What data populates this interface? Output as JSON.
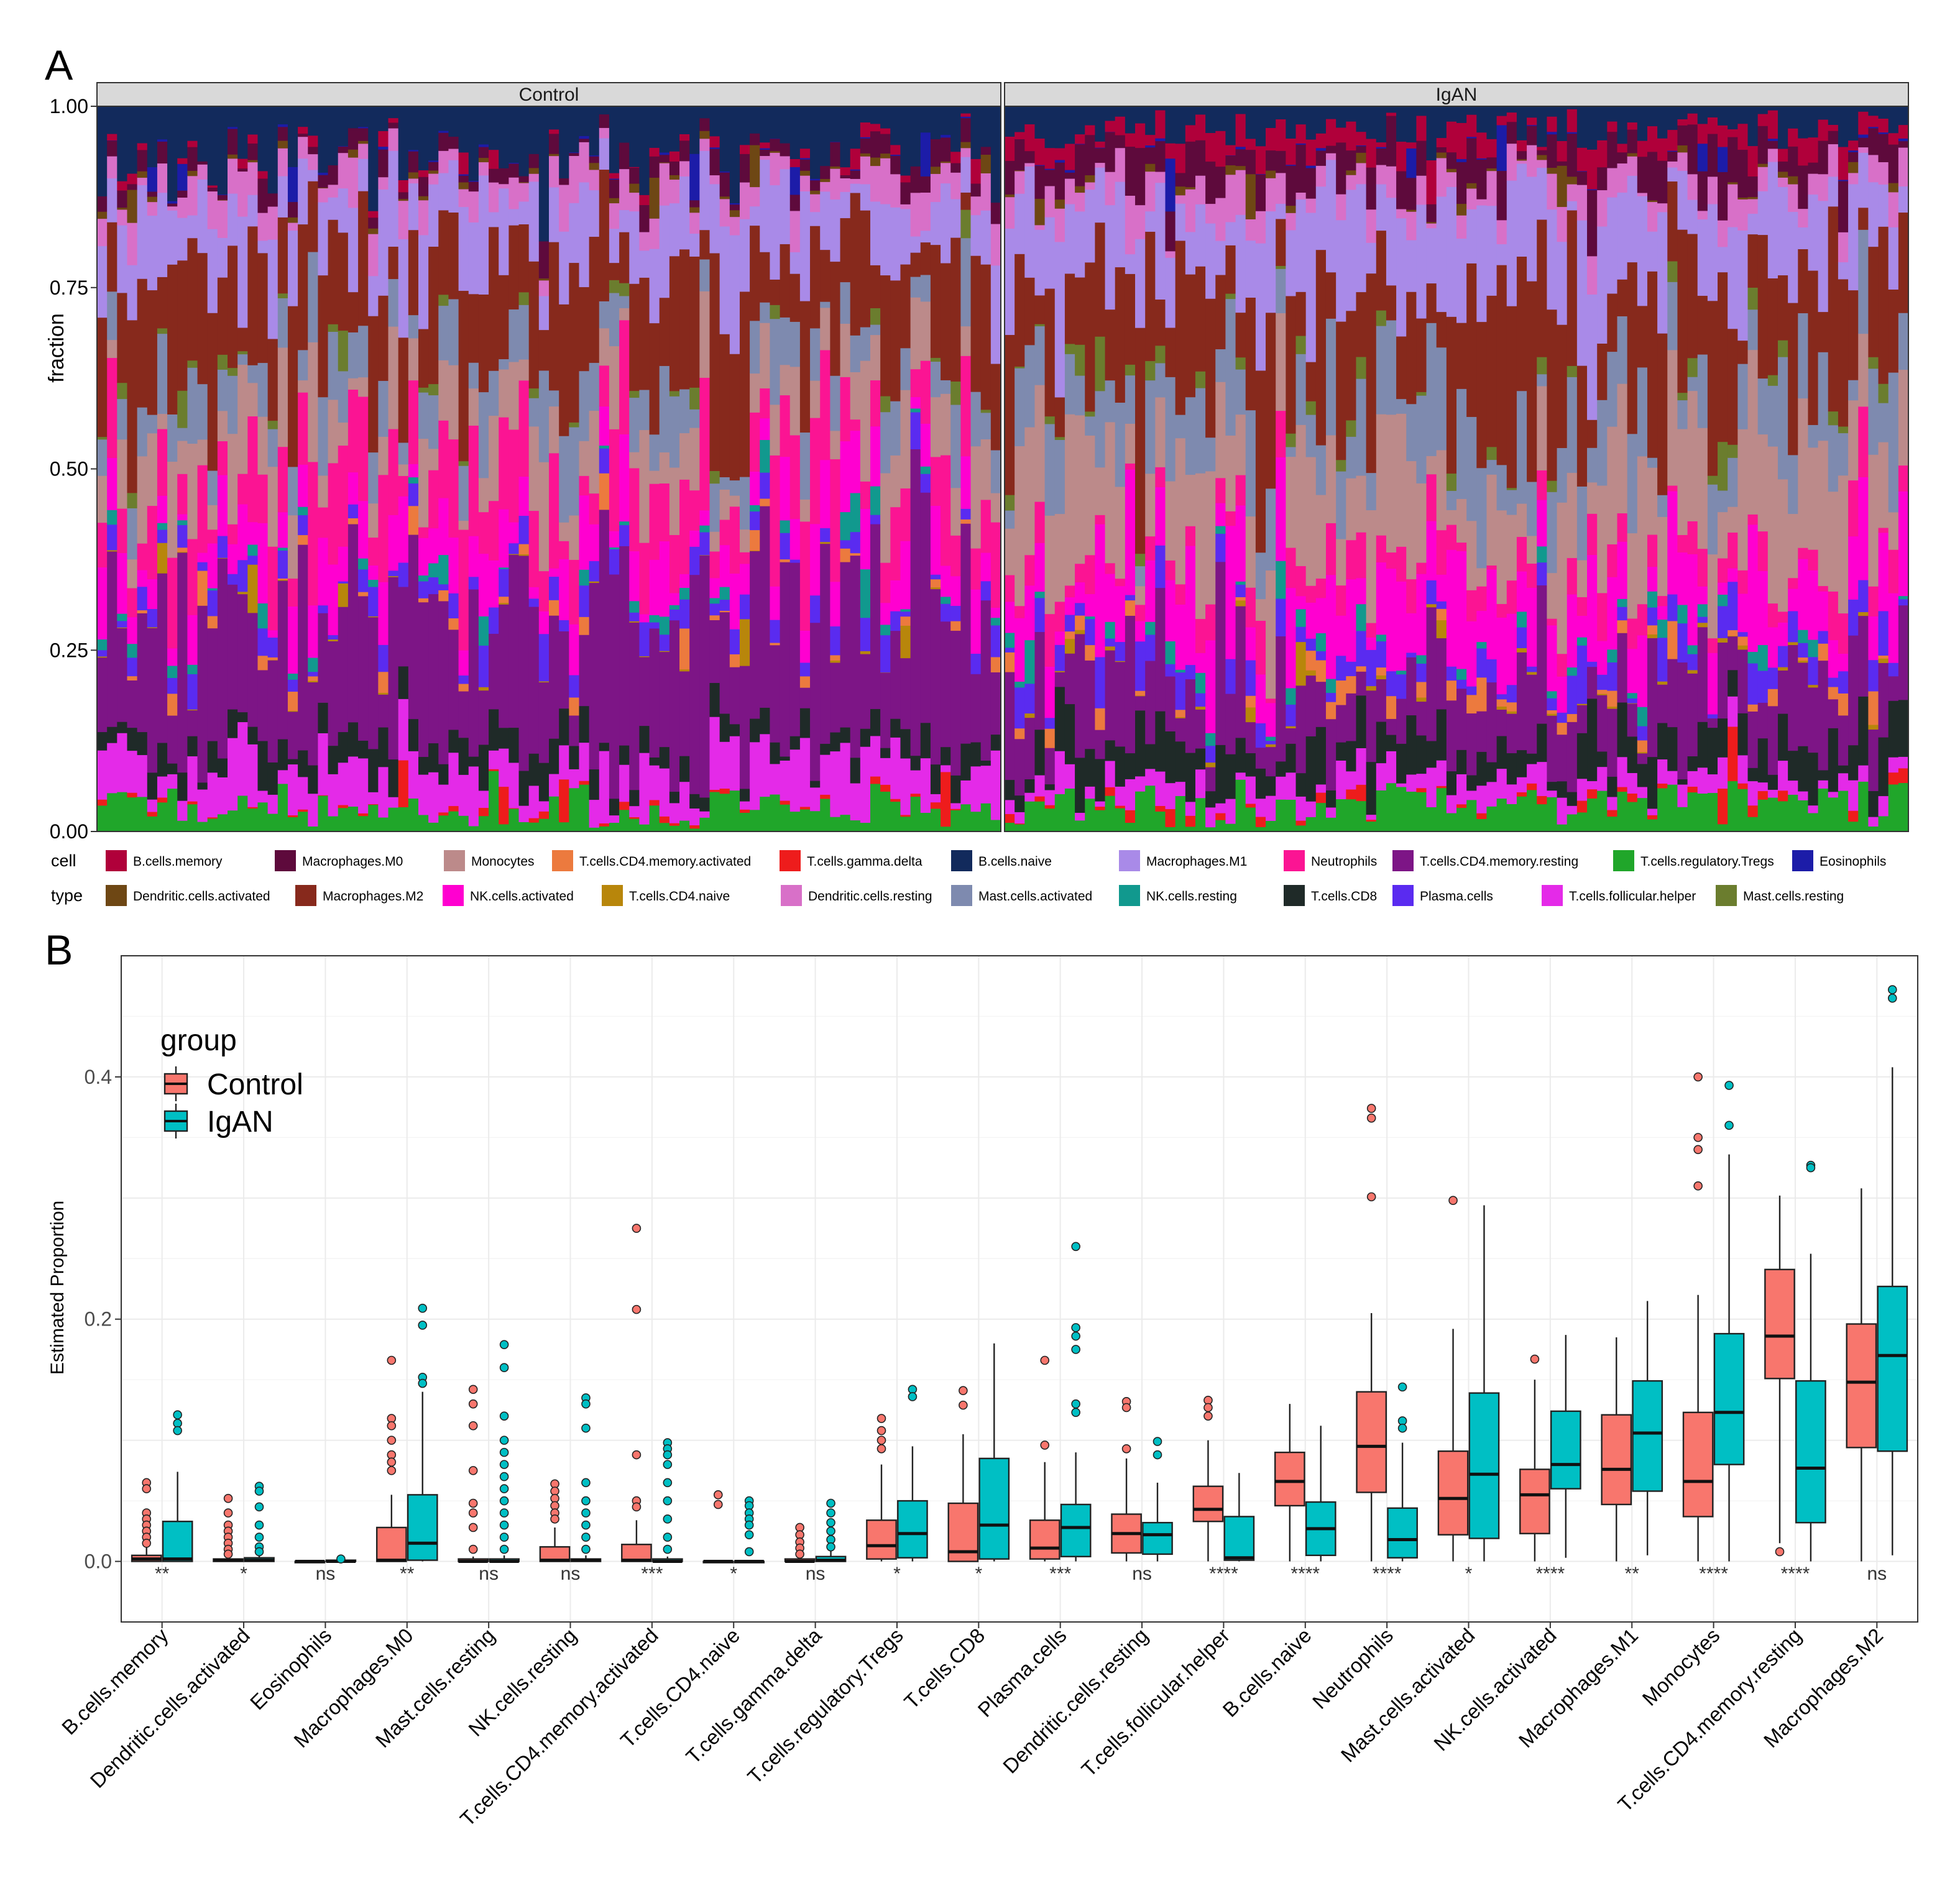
{
  "colors": {
    "B.cells.memory": "#b0003a",
    "Macrophages.M0": "#5e0a3c",
    "Monocytes": "#bc8a8a",
    "T.cells.CD4.memory.activated": "#ec7a3e",
    "T.cells.gamma.delta": "#ee1c1c",
    "B.cells.naive": "#122a5c",
    "Macrophages.M1": "#a98ae8",
    "Neutrophils": "#fb1493",
    "T.cells.CD4.memory.resting": "#7d1586",
    "T.cells.regulatory.Tregs": "#20a62a",
    "Eosinophils": "#1c1ca8",
    "Dendritic.cells.activated": "#6e4714",
    "Macrophages.M2": "#87291c",
    "NK.cells.activated": "#ff00d0",
    "T.cells.CD4.naive": "#b8860b",
    "Dendritic.cells.resting": "#d870c8",
    "Mast.cells.activated": "#7e8aaf",
    "NK.cells.resting": "#11998e",
    "T.cells.CD8": "#1f2a28",
    "Plasma.cells": "#5a2bf0",
    "T.cells.follicular.helper": "#e42ae8",
    "Mast.cells.resting": "#6b7d2e",
    "control": "#f8766d",
    "igan": "#00bfc4"
  },
  "chart_data": [
    {
      "panel_label": "A",
      "type": "stacked-bar",
      "ylabel": "fraction",
      "ylim": [
        0,
        1
      ],
      "yticks": [
        "0.00",
        "0.25",
        "0.50",
        "0.75",
        "1.00"
      ],
      "facets": [
        {
          "name": "Control",
          "n_samples": 90
        },
        {
          "name": "IgAN",
          "n_samples": 90
        }
      ],
      "legend_title": [
        "cell",
        "type"
      ],
      "legend": [
        "B.cells.memory",
        "Macrophages.M0",
        "Monocytes",
        "T.cells.CD4.memory.activated",
        "T.cells.gamma.delta",
        "B.cells.naive",
        "Macrophages.M1",
        "Neutrophils",
        "T.cells.CD4.memory.resting",
        "T.cells.regulatory.Tregs",
        "Eosinophils",
        "Dendritic.cells.activated",
        "Macrophages.M2",
        "NK.cells.activated",
        "T.cells.CD4.naive",
        "Dendritic.cells.resting",
        "Mast.cells.activated",
        "NK.cells.resting",
        "T.cells.CD8",
        "Plasma.cells",
        "T.cells.follicular.helper",
        "Mast.cells.resting"
      ],
      "stack_order_bottom_to_top": [
        "T.cells.regulatory.Tregs",
        "T.cells.gamma.delta",
        "T.cells.follicular.helper",
        "T.cells.CD8",
        "T.cells.CD4.memory.resting",
        "T.cells.CD4.naive",
        "T.cells.CD4.memory.activated",
        "Plasma.cells",
        "NK.cells.resting",
        "NK.cells.activated",
        "Neutrophils",
        "Monocytes",
        "Mast.cells.activated",
        "Mast.cells.resting",
        "Macrophages.M2",
        "Macrophages.M1",
        "Dendritic.cells.resting",
        "Dendritic.cells.activated",
        "Macrophages.M0",
        "Eosinophils",
        "B.cells.memory",
        "B.cells.naive"
      ],
      "mean_fractions": {
        "Control": {
          "T.cells.regulatory.Tregs": 0.035,
          "T.cells.gamma.delta": 0.005,
          "T.cells.follicular.helper": 0.055,
          "T.cells.CD8": 0.03,
          "T.cells.CD4.memory.resting": 0.19,
          "T.cells.CD4.naive": 0.002,
          "T.cells.CD4.memory.activated": 0.012,
          "Plasma.cells": 0.025,
          "NK.cells.resting": 0.015,
          "NK.cells.activated": 0.06,
          "Neutrophils": 0.1,
          "Monocytes": 0.08,
          "Mast.cells.activated": 0.07,
          "Mast.cells.resting": 0.012,
          "Macrophages.M2": 0.14,
          "Macrophages.M1": 0.085,
          "Dendritic.cells.resting": 0.035,
          "Dendritic.cells.activated": 0.006,
          "Macrophages.M0": 0.02,
          "Eosinophils": 0.002,
          "B.cells.memory": 0.01,
          "B.cells.naive": 0.07
        },
        "IgAN": {
          "T.cells.regulatory.Tregs": 0.035,
          "T.cells.gamma.delta": 0.008,
          "T.cells.follicular.helper": 0.025,
          "T.cells.CD8": 0.045,
          "T.cells.CD4.memory.resting": 0.1,
          "T.cells.CD4.naive": 0.004,
          "T.cells.CD4.memory.activated": 0.016,
          "Plasma.cells": 0.035,
          "NK.cells.resting": 0.018,
          "NK.cells.activated": 0.09,
          "Neutrophils": 0.04,
          "Monocytes": 0.13,
          "Mast.cells.activated": 0.09,
          "Mast.cells.resting": 0.015,
          "Macrophages.M2": 0.16,
          "Macrophages.M1": 0.1,
          "Dendritic.cells.resting": 0.03,
          "Dendritic.cells.activated": 0.008,
          "Macrophages.M0": 0.04,
          "Eosinophils": 0.002,
          "B.cells.memory": 0.025,
          "B.cells.naive": 0.03
        }
      }
    },
    {
      "panel_label": "B",
      "type": "boxplot",
      "ylabel": "Estimated Proportion",
      "ylim": [
        -0.05,
        0.5
      ],
      "yticks": [
        "0.0",
        "0.2",
        "0.4"
      ],
      "legend_title": "group",
      "groups": [
        "Control",
        "IgAN"
      ],
      "categories": [
        {
          "name": "B.cells.memory",
          "sig": "**",
          "Control": {
            "min": 0,
            "q1": 0,
            "median": 0.002,
            "q3": 0.005,
            "max": 0.012,
            "outliers": [
              0.065,
              0.06,
              0.04,
              0.035,
              0.03,
              0.025,
              0.02,
              0.015
            ]
          },
          "IgAN": {
            "min": 0,
            "q1": 0,
            "median": 0.002,
            "q3": 0.033,
            "max": 0.074,
            "outliers": [
              0.121,
              0.114,
              0.108
            ]
          }
        },
        {
          "name": "Dendritic.cells.activated",
          "sig": "*",
          "Control": {
            "min": 0,
            "q1": 0,
            "median": 0.001,
            "q3": 0.002,
            "max": 0.004,
            "outliers": [
              0.052,
              0.04,
              0.03,
              0.025,
              0.02,
              0.015,
              0.01,
              0.006
            ]
          },
          "IgAN": {
            "min": 0,
            "q1": 0,
            "median": 0.001,
            "q3": 0.003,
            "max": 0.006,
            "outliers": [
              0.062,
              0.058,
              0.045,
              0.03,
              0.02,
              0.012,
              0.008
            ]
          }
        },
        {
          "name": "Eosinophils",
          "sig": "ns",
          "Control": {
            "min": 0,
            "q1": 0,
            "median": 0,
            "q3": 0,
            "max": 0,
            "outliers": []
          },
          "IgAN": {
            "min": 0,
            "q1": 0,
            "median": 0,
            "q3": 0.001,
            "max": 0.001,
            "outliers": [
              0.002
            ]
          }
        },
        {
          "name": "Macrophages.M0",
          "sig": "**",
          "Control": {
            "min": 0,
            "q1": 0,
            "median": 0.001,
            "q3": 0.028,
            "max": 0.055,
            "outliers": [
              0.166,
              0.118,
              0.112,
              0.1,
              0.088,
              0.082,
              0.075
            ]
          },
          "IgAN": {
            "min": 0,
            "q1": 0.001,
            "median": 0.015,
            "q3": 0.055,
            "max": 0.14,
            "outliers": [
              0.209,
              0.195,
              0.152,
              0.147
            ]
          }
        },
        {
          "name": "Mast.cells.resting",
          "sig": "ns",
          "Control": {
            "min": 0,
            "q1": 0,
            "median": 0,
            "q3": 0.002,
            "max": 0.004,
            "outliers": [
              0.142,
              0.13,
              0.112,
              0.075,
              0.048,
              0.04,
              0.028,
              0.01
            ]
          },
          "IgAN": {
            "min": 0,
            "q1": 0,
            "median": 0,
            "q3": 0.002,
            "max": 0.005,
            "outliers": [
              0.179,
              0.16,
              0.12,
              0.1,
              0.09,
              0.08,
              0.07,
              0.06,
              0.05,
              0.04,
              0.03,
              0.02,
              0.01
            ]
          }
        },
        {
          "name": "NK.cells.resting",
          "sig": "ns",
          "Control": {
            "min": 0,
            "q1": 0,
            "median": 0.001,
            "q3": 0.012,
            "max": 0.028,
            "outliers": [
              0.064,
              0.058,
              0.052,
              0.046,
              0.04,
              0.035
            ]
          },
          "IgAN": {
            "min": 0,
            "q1": 0,
            "median": 0.001,
            "q3": 0.002,
            "max": 0.005,
            "outliers": [
              0.135,
              0.13,
              0.11,
              0.065,
              0.05,
              0.04,
              0.03,
              0.02,
              0.01
            ]
          }
        },
        {
          "name": "T.cells.CD4.memory.activated",
          "sig": "***",
          "Control": {
            "min": 0,
            "q1": 0,
            "median": 0.001,
            "q3": 0.014,
            "max": 0.034,
            "outliers": [
              0.275,
              0.208,
              0.088,
              0.05,
              0.045
            ]
          },
          "IgAN": {
            "min": 0,
            "q1": 0,
            "median": 0,
            "q3": 0.002,
            "max": 0.004,
            "outliers": [
              0.098,
              0.093,
              0.088,
              0.08,
              0.065,
              0.05,
              0.035,
              0.02,
              0.01
            ]
          }
        },
        {
          "name": "T.cells.CD4.naive",
          "sig": "*",
          "Control": {
            "min": 0,
            "q1": 0,
            "median": 0,
            "q3": 0,
            "max": 0,
            "outliers": [
              0.055,
              0.047
            ]
          },
          "IgAN": {
            "min": 0,
            "q1": 0,
            "median": 0,
            "q3": 0,
            "max": 0,
            "outliers": [
              0.05,
              0.046,
              0.04,
              0.035,
              0.03,
              0.022,
              0.008
            ]
          }
        },
        {
          "name": "T.cells.gamma.delta",
          "sig": "ns",
          "Control": {
            "min": 0,
            "q1": 0,
            "median": 0,
            "q3": 0.002,
            "max": 0.004,
            "outliers": [
              0.028,
              0.022,
              0.016,
              0.011,
              0.006
            ]
          },
          "IgAN": {
            "min": 0,
            "q1": 0,
            "median": 0.001,
            "q3": 0.004,
            "max": 0.009,
            "outliers": [
              0.048,
              0.04,
              0.032,
              0.025,
              0.018,
              0.012
            ]
          }
        },
        {
          "name": "T.cells.regulatory.Tregs",
          "sig": "*",
          "Control": {
            "min": 0,
            "q1": 0.002,
            "median": 0.013,
            "q3": 0.034,
            "max": 0.08,
            "outliers": [
              0.118,
              0.108,
              0.1,
              0.093
            ]
          },
          "IgAN": {
            "min": 0,
            "q1": 0.003,
            "median": 0.023,
            "q3": 0.05,
            "max": 0.095,
            "outliers": [
              0.142,
              0.136
            ]
          }
        },
        {
          "name": "T.cells.CD8",
          "sig": "*",
          "Control": {
            "min": 0,
            "q1": 0,
            "median": 0.008,
            "q3": 0.048,
            "max": 0.105,
            "outliers": [
              0.141,
              0.129
            ]
          },
          "IgAN": {
            "min": 0,
            "q1": 0.002,
            "median": 0.03,
            "q3": 0.085,
            "max": 0.18,
            "outliers": []
          }
        },
        {
          "name": "Plasma.cells",
          "sig": "***",
          "Control": {
            "min": 0,
            "q1": 0.002,
            "median": 0.011,
            "q3": 0.034,
            "max": 0.082,
            "outliers": [
              0.166,
              0.096
            ]
          },
          "IgAN": {
            "min": 0,
            "q1": 0.004,
            "median": 0.028,
            "q3": 0.047,
            "max": 0.09,
            "outliers": [
              0.26,
              0.193,
              0.186,
              0.175,
              0.13,
              0.123
            ]
          }
        },
        {
          "name": "Dendritic.cells.resting",
          "sig": "ns",
          "Control": {
            "min": 0,
            "q1": 0.007,
            "median": 0.023,
            "q3": 0.039,
            "max": 0.085,
            "outliers": [
              0.132,
              0.127,
              0.093
            ]
          },
          "IgAN": {
            "min": 0,
            "q1": 0.006,
            "median": 0.022,
            "q3": 0.032,
            "max": 0.065,
            "outliers": [
              0.099,
              0.088
            ]
          }
        },
        {
          "name": "T.cells.follicular.helper",
          "sig": "****",
          "Control": {
            "min": 0,
            "q1": 0.033,
            "median": 0.043,
            "q3": 0.062,
            "max": 0.1,
            "outliers": [
              0.133,
              0.127,
              0.12
            ]
          },
          "IgAN": {
            "min": 0,
            "q1": 0.001,
            "median": 0.003,
            "q3": 0.037,
            "max": 0.073,
            "outliers": []
          }
        },
        {
          "name": "B.cells.naive",
          "sig": "****",
          "Control": {
            "min": 0,
            "q1": 0.046,
            "median": 0.066,
            "q3": 0.09,
            "max": 0.13,
            "outliers": []
          },
          "IgAN": {
            "min": 0,
            "q1": 0.005,
            "median": 0.027,
            "q3": 0.049,
            "max": 0.112,
            "outliers": []
          }
        },
        {
          "name": "Neutrophils",
          "sig": "****",
          "Control": {
            "min": 0,
            "q1": 0.057,
            "median": 0.095,
            "q3": 0.14,
            "max": 0.205,
            "outliers": [
              0.374,
              0.366,
              0.301
            ]
          },
          "IgAN": {
            "min": 0,
            "q1": 0.003,
            "median": 0.018,
            "q3": 0.044,
            "max": 0.098,
            "outliers": [
              0.144,
              0.116,
              0.11
            ]
          }
        },
        {
          "name": "Mast.cells.activated",
          "sig": "*",
          "Control": {
            "min": 0,
            "q1": 0.022,
            "median": 0.052,
            "q3": 0.091,
            "max": 0.192,
            "outliers": [
              0.298
            ]
          },
          "IgAN": {
            "min": 0,
            "q1": 0.019,
            "median": 0.072,
            "q3": 0.139,
            "max": 0.294,
            "outliers": []
          }
        },
        {
          "name": "NK.cells.activated",
          "sig": "****",
          "Control": {
            "min": 0,
            "q1": 0.023,
            "median": 0.055,
            "q3": 0.076,
            "max": 0.15,
            "outliers": [
              0.167
            ]
          },
          "IgAN": {
            "min": 0.003,
            "q1": 0.06,
            "median": 0.08,
            "q3": 0.124,
            "max": 0.187,
            "outliers": []
          }
        },
        {
          "name": "Macrophages.M1",
          "sig": "**",
          "Control": {
            "min": 0,
            "q1": 0.047,
            "median": 0.076,
            "q3": 0.121,
            "max": 0.185,
            "outliers": []
          },
          "IgAN": {
            "min": 0.005,
            "q1": 0.058,
            "median": 0.106,
            "q3": 0.149,
            "max": 0.215,
            "outliers": []
          }
        },
        {
          "name": "Monocytes",
          "sig": "****",
          "Control": {
            "min": 0,
            "q1": 0.037,
            "median": 0.066,
            "q3": 0.123,
            "max": 0.22,
            "outliers": [
              0.4,
              0.35,
              0.34,
              0.31
            ]
          },
          "IgAN": {
            "min": 0,
            "q1": 0.08,
            "median": 0.123,
            "q3": 0.188,
            "max": 0.336,
            "outliers": [
              0.393,
              0.36
            ]
          }
        },
        {
          "name": "T.cells.CD4.memory.resting",
          "sig": "****",
          "Control": {
            "min": 0.015,
            "q1": 0.151,
            "median": 0.186,
            "q3": 0.241,
            "max": 0.302,
            "outliers": [
              0.008
            ]
          },
          "IgAN": {
            "min": 0,
            "q1": 0.032,
            "median": 0.077,
            "q3": 0.149,
            "max": 0.254,
            "outliers": [
              0.327,
              0.325
            ]
          }
        },
        {
          "name": "Macrophages.M2",
          "sig": "ns",
          "Control": {
            "min": 0,
            "q1": 0.094,
            "median": 0.148,
            "q3": 0.196,
            "max": 0.308,
            "outliers": []
          },
          "IgAN": {
            "min": 0.005,
            "q1": 0.091,
            "median": 0.17,
            "q3": 0.227,
            "max": 0.408,
            "outliers": [
              0.472,
              0.465
            ]
          }
        }
      ]
    }
  ]
}
